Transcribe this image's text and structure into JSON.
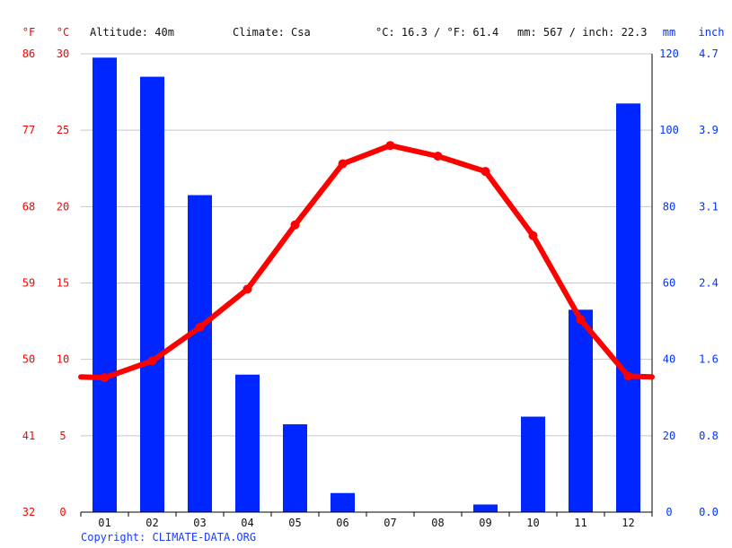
{
  "header": {
    "unit_f": "°F",
    "unit_c": "°C",
    "altitude": "Altitude: 40m",
    "climate": "Climate: Csa",
    "temp_avg": "°C: 16.3 / °F: 61.4",
    "precip_total": "mm: 567 / inch: 22.3",
    "unit_mm": "mm",
    "unit_inch": "inch"
  },
  "footer": {
    "copyright": "Copyright: CLIMATE-DATA.ORG"
  },
  "colors": {
    "temperature": "#ff0000",
    "precipitation": "#0026ff",
    "grid": "#c8c8c8"
  },
  "chart_data": {
    "type": "bar",
    "categories": [
      "01",
      "02",
      "03",
      "04",
      "05",
      "06",
      "07",
      "08",
      "09",
      "10",
      "11",
      "12"
    ],
    "series": [
      {
        "type": "bar",
        "axis": "right",
        "values": [
          119,
          114,
          83,
          36,
          23,
          5,
          0,
          0,
          2,
          25,
          53,
          107
        ]
      },
      {
        "type": "line",
        "axis": "left",
        "values": [
          8.8,
          9.9,
          12.1,
          14.6,
          18.8,
          22.8,
          24.0,
          23.3,
          22.3,
          18.1,
          12.6,
          8.9
        ]
      }
    ],
    "left_axis_c": {
      "ylim": [
        0,
        30
      ],
      "ticks": [
        "0",
        "5",
        "10",
        "15",
        "20",
        "25",
        "30"
      ]
    },
    "left_axis_f": {
      "ticks": [
        "32",
        "41",
        "50",
        "59",
        "68",
        "77",
        "86"
      ]
    },
    "right_axis_mm": {
      "ylim": [
        0,
        120
      ],
      "ticks": [
        "0",
        "20",
        "40",
        "60",
        "80",
        "100",
        "120"
      ]
    },
    "right_axis_inch": {
      "ticks": [
        "0.0",
        "0.8",
        "1.6",
        "2.4",
        "3.1",
        "3.9",
        "4.7"
      ]
    },
    "grid": true
  }
}
